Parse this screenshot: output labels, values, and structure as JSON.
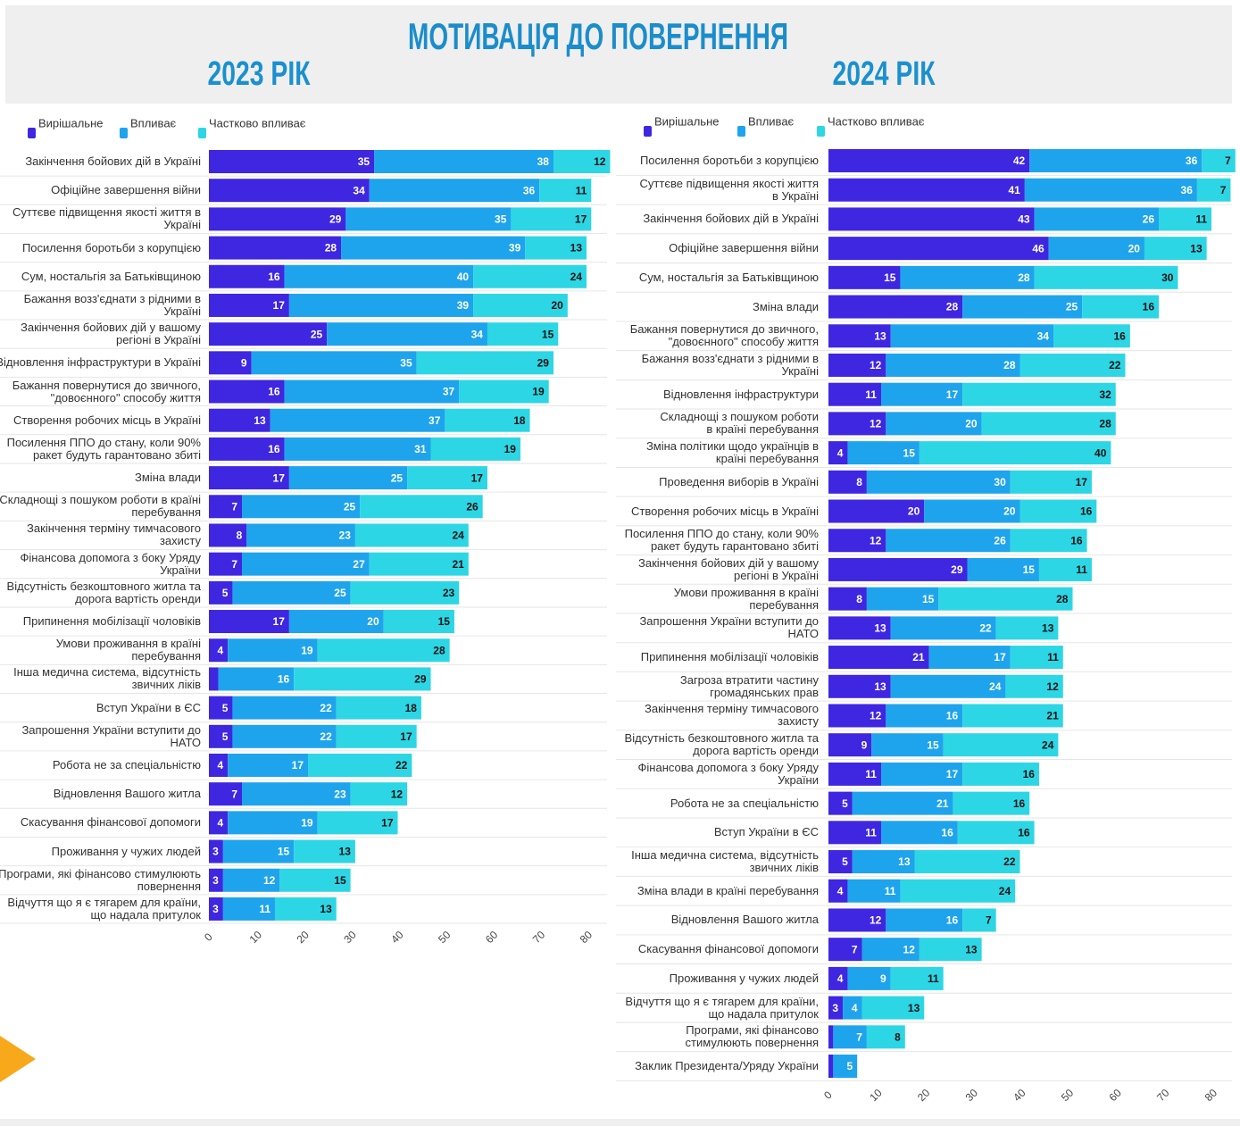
{
  "title": "МОТИВАЦІЯ ДО ПОВЕРНЕННЯ",
  "chart_data": [
    {
      "type": "bar",
      "orientation": "horizontal",
      "stacked": true,
      "subtitle": "2023 РІК",
      "categories": [
        "Закінчення бойових дій в Україні",
        "Офіційне завершення війни",
        "Суттєве підвищення якості життя в\nУкраїні",
        "Посилення боротьби з корупцією",
        "Сум, ностальгія за Батьківщиною",
        "Бажання возз'єднати з рідними в\nУкраїні",
        "Закінчення бойових дій у вашому\nрегіоні в Україні",
        "Відновлення інфраструктури в Україні",
        "Бажання повернутися до звичного,\n\"довоєнного\" способу життя",
        "Створення робочих місць в Україні",
        "Посилення ППО до стану, коли 90%\nракет будуть гарантовано збиті",
        "Зміна влади",
        "Складнощі з пошуком роботи в країні\nперебування",
        "Закінчення терміну тимчасового\nзахисту",
        "Фінансова допомога з боку Уряду\nУкраїни",
        "Відсутність безкоштовного житла та\nдорога вартість оренди",
        "Припинення мобілізації чоловіків",
        "Умови проживання в країні\nперебування",
        "Інша медична система, відсутність\nзвичних ліків",
        "Вступ України в ЄС",
        "Запрошення України вступити до\nНАТО",
        "Робота не за спеціальністю",
        "Відновлення Вашого житла",
        "Скасування фінансової допомоги",
        "Проживання у чужих людей",
        "Програми, які фінансово стимулюють\nповернення",
        "Відчуття що я є тягарем для країни,\nщо надала притулок"
      ],
      "series": [
        {
          "name": "Вирішальне",
          "color": "#3f26e0",
          "values": [
            35,
            34,
            29,
            28,
            16,
            17,
            25,
            9,
            16,
            13,
            16,
            17,
            7,
            8,
            7,
            5,
            17,
            4,
            2,
            5,
            5,
            4,
            7,
            4,
            3,
            3,
            3
          ],
          "value_labels": [
            "35",
            "34",
            "29",
            "28",
            "16",
            "17",
            "25",
            "9",
            "16",
            "13",
            "16",
            "17",
            "7",
            "8",
            "7",
            "5",
            "17",
            "4",
            null,
            "5",
            "5",
            "4",
            "7",
            "4",
            "3",
            "3",
            "3"
          ]
        },
        {
          "name": "Впливає",
          "color": "#1ea4ec",
          "values": [
            38,
            36,
            35,
            39,
            40,
            39,
            34,
            35,
            37,
            37,
            31,
            25,
            25,
            23,
            27,
            25,
            20,
            19,
            16,
            22,
            22,
            17,
            23,
            19,
            15,
            12,
            11
          ]
        },
        {
          "name": "Частково впливає",
          "color": "#2dd6e4",
          "values": [
            12,
            11,
            17,
            13,
            24,
            20,
            15,
            29,
            19,
            18,
            19,
            17,
            26,
            24,
            21,
            23,
            15,
            28,
            29,
            18,
            17,
            22,
            12,
            17,
            13,
            15,
            13
          ]
        }
      ],
      "xlim": [
        0,
        80
      ],
      "xticks": [
        0,
        10,
        20,
        30,
        40,
        50,
        60,
        70,
        80
      ]
    },
    {
      "type": "bar",
      "orientation": "horizontal",
      "stacked": true,
      "subtitle": "2024 РІК",
      "categories": [
        "Посилення боротьби з корупцією",
        "Суттєве підвищення якості життя\nв Україні",
        "Закінчення бойових дій в Україні",
        "Офіційне завершення війни",
        "Сум, ностальгія за Батьківщиною",
        "Зміна влади",
        "Бажання повернутися до звичного,\n\"довоєнного\" способу життя",
        "Бажання возз'єднати з рідними в\nУкраїні",
        "Відновлення інфраструктури",
        "Складнощі з пошуком роботи\nв країні перебування",
        "Зміна політики щодо українців в\nкраїні перебування",
        "Проведення виборів в Україні",
        "Створення робочих місць в Україні",
        "Посилення ППО до стану, коли 90%\nракет будуть гарантовано збиті",
        "Закінчення бойових дій у вашому\nрегіоні в Україні",
        "Умови проживання в країні\nперебування",
        "Запрошення України вступити до\nНАТО",
        "Припинення мобілізації чоловіків",
        "Загроза втратити частину\nгромадянських прав",
        "Закінчення терміну тимчасового\nзахисту",
        "Відсутність безкоштовного житла та\nдорога вартість оренди",
        "Фінансова допомога з боку Уряду\nУкраїни",
        "Робота не за спеціальністю",
        "Вступ України в ЄС",
        "Інша медична система, відсутність\nзвичних ліків",
        "Зміна влади в країні перебування",
        "Відновлення Вашого житла",
        "Скасування фінансової допомоги",
        "Проживання у чужих людей",
        "Відчуття що я є тягарем для країни,\nщо надала притулок",
        "Програми, які фінансово\nстимулюють повернення",
        "Заклик Президента/Уряду України"
      ],
      "series": [
        {
          "name": "Вирішальне",
          "color": "#3f26e0",
          "values": [
            42,
            41,
            43,
            46,
            15,
            28,
            13,
            12,
            11,
            12,
            4,
            8,
            20,
            12,
            29,
            8,
            13,
            21,
            13,
            12,
            9,
            11,
            5,
            11,
            5,
            4,
            12,
            7,
            4,
            3,
            1,
            1
          ],
          "value_labels": [
            "42",
            "41",
            "43",
            "46",
            "15",
            "28",
            "13",
            "12",
            "11",
            "12",
            "4",
            "8",
            "20",
            "12",
            "29",
            "8",
            "13",
            "21",
            "13",
            "12",
            "9",
            "11",
            "5",
            "11",
            "5",
            "4",
            "12",
            "7",
            "4",
            "3",
            null,
            null
          ]
        },
        {
          "name": "Впливає",
          "color": "#1ea4ec",
          "values": [
            36,
            36,
            26,
            20,
            28,
            25,
            34,
            28,
            17,
            20,
            15,
            30,
            20,
            26,
            15,
            15,
            22,
            17,
            24,
            16,
            15,
            17,
            21,
            16,
            13,
            11,
            16,
            12,
            9,
            4,
            7,
            5
          ]
        },
        {
          "name": "Частково впливає",
          "color": "#2dd6e4",
          "values": [
            7,
            7,
            11,
            13,
            30,
            16,
            16,
            22,
            32,
            28,
            40,
            17,
            16,
            16,
            11,
            28,
            13,
            11,
            12,
            21,
            24,
            16,
            16,
            16,
            22,
            24,
            7,
            13,
            11,
            13,
            8,
            null
          ]
        }
      ],
      "xlim": [
        0,
        80
      ],
      "xticks": [
        0,
        10,
        20,
        30,
        40,
        50,
        60,
        70,
        80
      ]
    }
  ]
}
